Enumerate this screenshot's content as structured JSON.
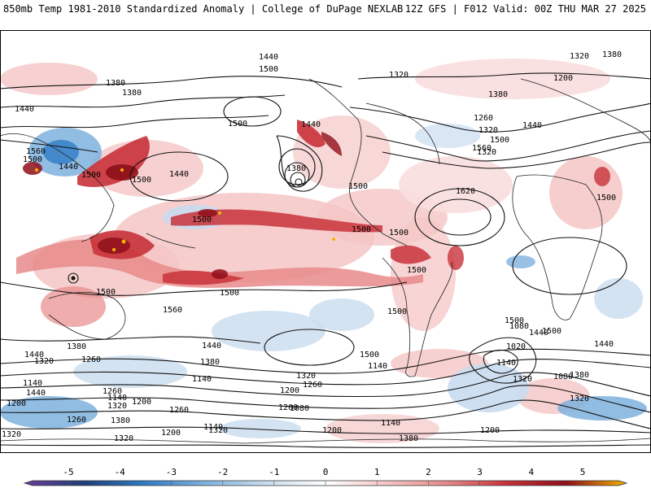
{
  "header": {
    "title": "850mb Temp 1981-2010 Standardized Anomaly | College of DuPage NEXLAB",
    "run_info": "12Z GFS | F012 Valid: 00Z THU MAR 27 2025"
  },
  "colorbar": {
    "ticks": [
      "-5",
      "-4",
      "-3",
      "-2",
      "-1",
      "0",
      "1",
      "2",
      "3",
      "4",
      "5"
    ],
    "colors": [
      "#6a3d9a",
      "#1f3f7a",
      "#2f7cc6",
      "#7fb2de",
      "#c9dcef",
      "#ffffff",
      "#f5c6c6",
      "#e88a8a",
      "#c8323a",
      "#8e0f1a",
      "#f2b400"
    ]
  },
  "map": {
    "contour_labels": [
      "1440",
      "1500",
      "1320",
      "1380",
      "1380",
      "1380",
      "1440",
      "1560",
      "1500",
      "1440",
      "1500",
      "1500",
      "1440",
      "1500",
      "1440",
      "1380",
      "1320",
      "1260",
      "1320",
      "1380",
      "1200",
      "1320",
      "1440",
      "1500",
      "1560",
      "1500",
      "1620",
      "1500",
      "1500",
      "1500",
      "1500",
      "1500",
      "1500",
      "1500",
      "1560",
      "1500",
      "1500",
      "1440",
      "1380",
      "1320",
      "1260",
      "1140",
      "1500",
      "1440",
      "1080",
      "1020",
      "1140",
      "1320",
      "1380",
      "1440",
      "1500",
      "1440",
      "1380",
      "1320",
      "1260",
      "1200",
      "1140",
      "1440",
      "1320",
      "1140",
      "1200",
      "1380",
      "1260",
      "1140",
      "1260",
      "1320",
      "1200",
      "1380",
      "1080",
      "1080",
      "1200",
      "1140",
      "1260",
      "1320",
      "1200",
      "1200",
      "1140",
      "1320",
      "1200",
      "1320"
    ]
  }
}
